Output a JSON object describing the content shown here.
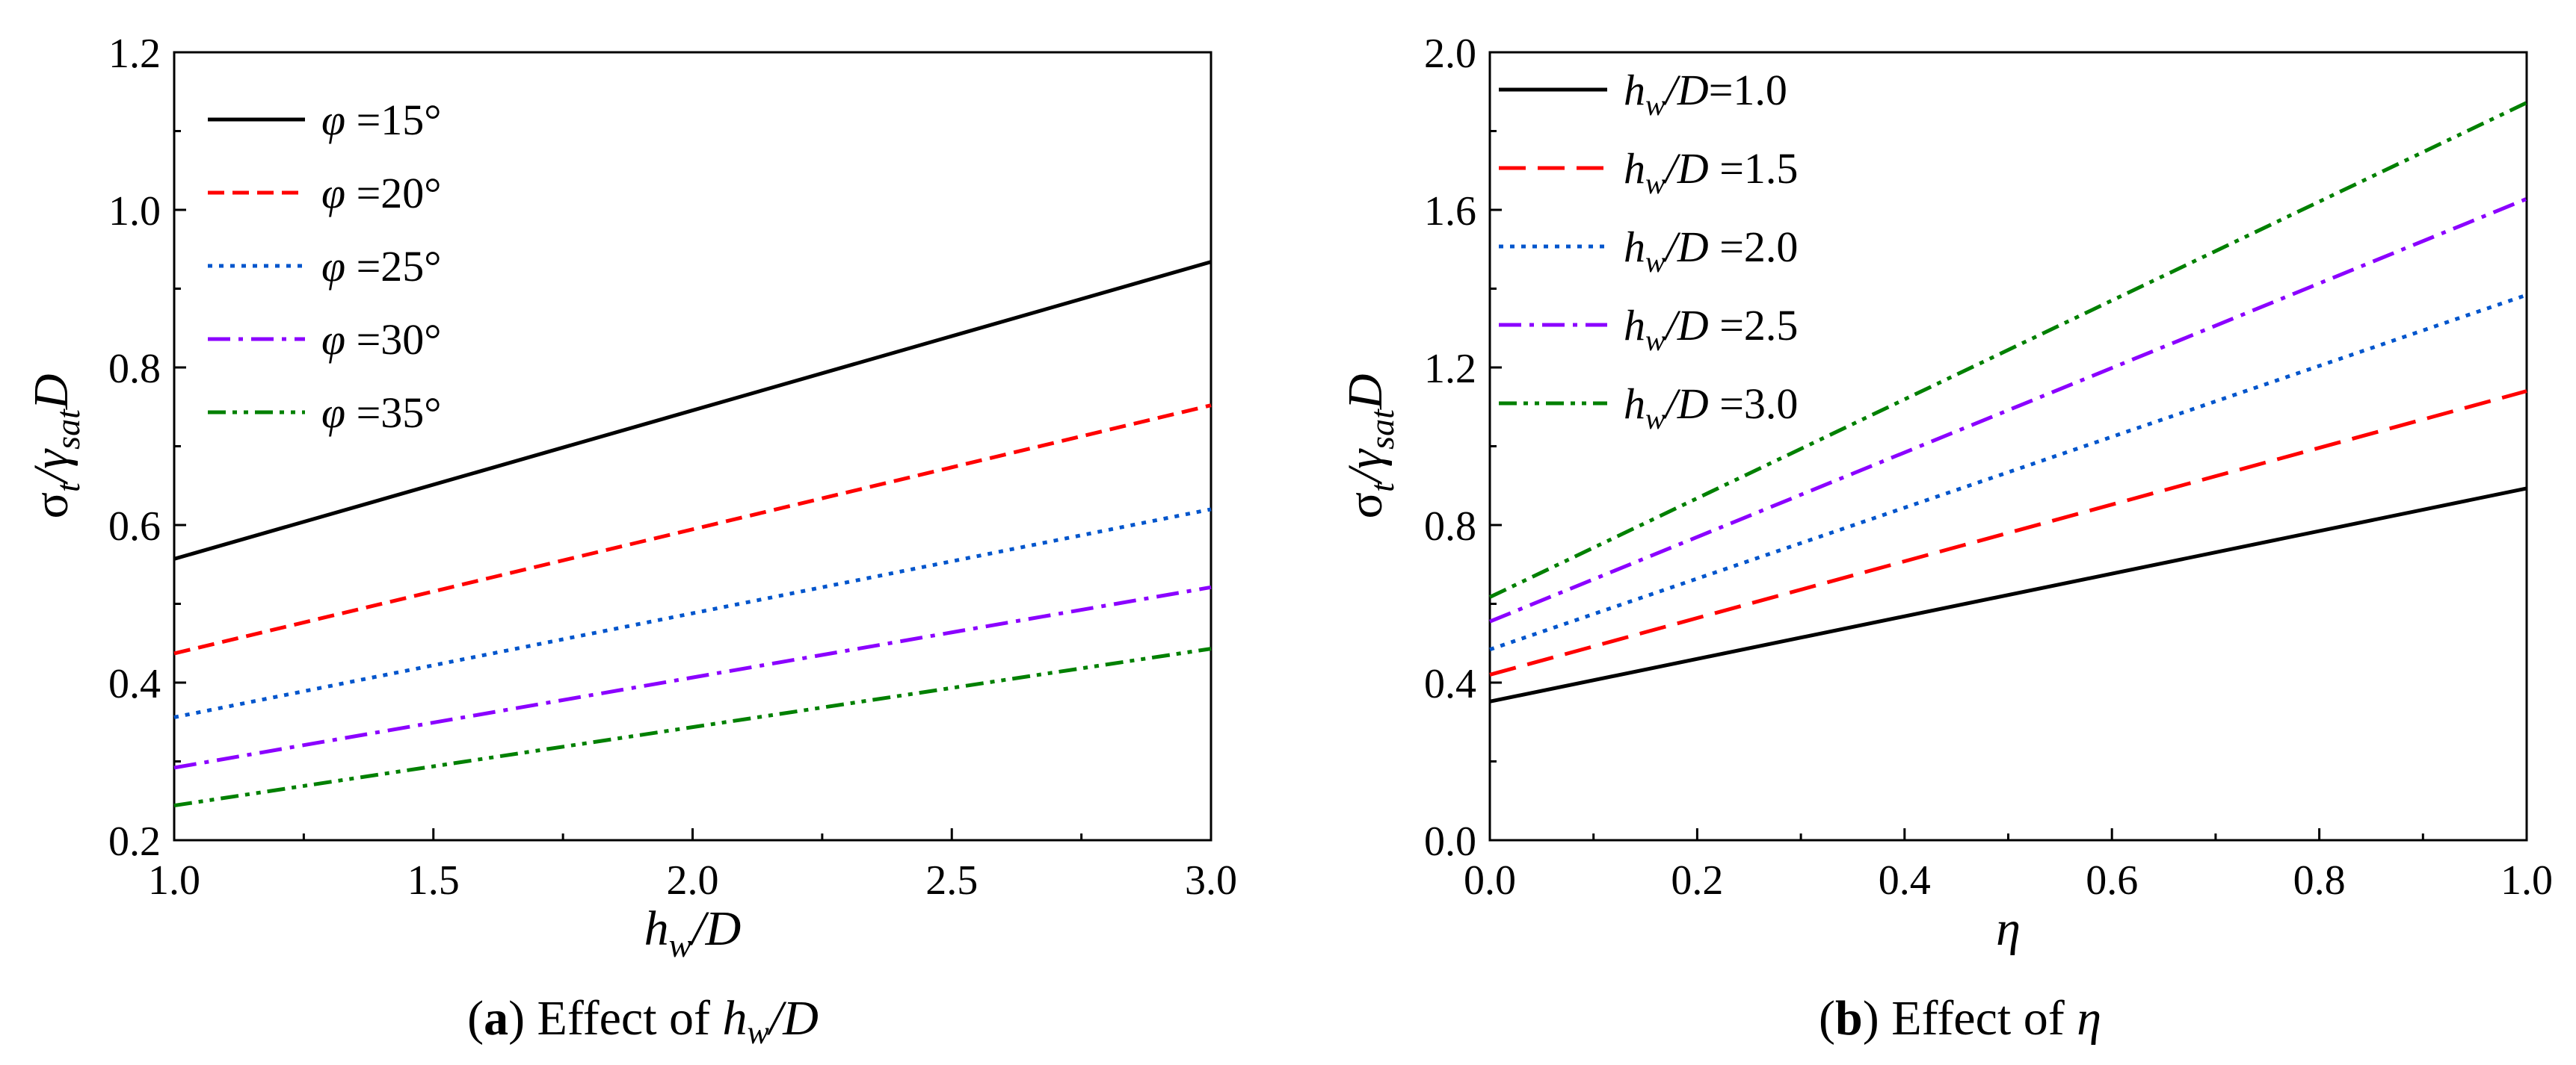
{
  "chart_data": [
    {
      "id": "a",
      "type": "line",
      "caption": {
        "letter": "a",
        "open": "(",
        "close": ")",
        "text": " Effect of ",
        "var_main": "h",
        "var_sub": "w",
        "var_tail": "/",
        "var_den": "D"
      },
      "xlabel": {
        "main": "h",
        "sub": "w",
        "tail": "/D"
      },
      "ylabel": {
        "main": "σ",
        "sub1": "t",
        "mid": "/",
        "gamma": "γ",
        "sub2": "sat",
        "tail": "D"
      },
      "xlim": [
        1.0,
        3.0
      ],
      "ylim": [
        0.2,
        1.2
      ],
      "x_ticks": [
        1.0,
        1.5,
        2.0,
        2.5,
        3.0
      ],
      "x_tick_labels": [
        "1.0",
        "1.5",
        "2.0",
        "2.5",
        "3.0"
      ],
      "y_ticks": [
        0.2,
        0.4,
        0.6,
        0.8,
        1.0,
        1.2
      ],
      "y_tick_labels": [
        "0.2",
        "0.4",
        "0.6",
        "0.8",
        "1.0",
        "1.2"
      ],
      "legend_position": "top-left",
      "series": [
        {
          "name": "φ =15°",
          "sym": "φ",
          "rest": " =15°",
          "color": "#000000",
          "dash": "solid",
          "x": [
            1.0,
            3.0
          ],
          "values": [
            0.557,
            0.934
          ]
        },
        {
          "name": "φ =20°",
          "sym": "φ",
          "rest": " =20°",
          "color": "#ff0000",
          "dash": "dash",
          "x": [
            1.0,
            3.0
          ],
          "values": [
            0.437,
            0.752
          ]
        },
        {
          "name": "φ =25°",
          "sym": "φ",
          "rest": " =25°",
          "color": "#0055cc",
          "dash": "dot",
          "x": [
            1.0,
            3.0
          ],
          "values": [
            0.356,
            0.62
          ]
        },
        {
          "name": "φ =30°",
          "sym": "φ",
          "rest": " =30°",
          "color": "#8b00ff",
          "dash": "dashdot",
          "x": [
            1.0,
            3.0
          ],
          "values": [
            0.292,
            0.521
          ]
        },
        {
          "name": "φ =35°",
          "sym": "φ",
          "rest": " =35°",
          "color": "#008000",
          "dash": "dashdotdot",
          "x": [
            1.0,
            3.0
          ],
          "values": [
            0.244,
            0.443
          ]
        }
      ]
    },
    {
      "id": "b",
      "type": "line",
      "caption": {
        "letter": "b",
        "open": "(",
        "close": ")",
        "text": " Effect of ",
        "var_main": "η"
      },
      "xlabel": {
        "main": "η"
      },
      "ylabel": {
        "main": "σ",
        "sub1": "t",
        "mid": "/",
        "gamma": "γ",
        "sub2": "sat",
        "tail": "D"
      },
      "xlim": [
        0.0,
        1.0
      ],
      "ylim": [
        0.0,
        2.0
      ],
      "x_ticks": [
        0.0,
        0.2,
        0.4,
        0.6,
        0.8,
        1.0
      ],
      "x_tick_labels": [
        "0.0",
        "0.2",
        "0.4",
        "0.6",
        "0.8",
        "1.0"
      ],
      "y_ticks": [
        0.0,
        0.4,
        0.8,
        1.2,
        1.6,
        2.0
      ],
      "y_tick_labels": [
        "0.0",
        "0.4",
        "0.8",
        "1.2",
        "1.6",
        "2.0"
      ],
      "legend_position": "top-left",
      "series": [
        {
          "name": "hw/D=1.0",
          "sym": "h",
          "sub": "w",
          "slash": "/D",
          "rest": "=1.0",
          "color": "#000000",
          "dash": "solid",
          "x": [
            0.0,
            1.0
          ],
          "values": [
            0.352,
            0.893
          ]
        },
        {
          "name": "hw/D =1.5",
          "sym": "h",
          "sub": "w",
          "slash": "/D",
          "rest": " =1.5",
          "color": "#ff0000",
          "dash": "longdash",
          "x": [
            0.0,
            1.0
          ],
          "values": [
            0.42,
            1.14
          ]
        },
        {
          "name": "hw/D =2.0",
          "sym": "h",
          "sub": "w",
          "slash": "/D",
          "rest": " =2.0",
          "color": "#0055cc",
          "dash": "dot",
          "x": [
            0.0,
            1.0
          ],
          "values": [
            0.484,
            1.384
          ]
        },
        {
          "name": "hw/D =2.5",
          "sym": "h",
          "sub": "w",
          "slash": "/D",
          "rest": " =2.5",
          "color": "#8b00ff",
          "dash": "dashdot",
          "x": [
            0.0,
            1.0
          ],
          "values": [
            0.555,
            1.628
          ]
        },
        {
          "name": "hw/D =3.0",
          "sym": "h",
          "sub": "w",
          "slash": "/D",
          "rest": " =3.0",
          "color": "#008000",
          "dash": "dashdotdot",
          "x": [
            0.0,
            1.0
          ],
          "values": [
            0.617,
            1.872
          ]
        }
      ]
    }
  ]
}
